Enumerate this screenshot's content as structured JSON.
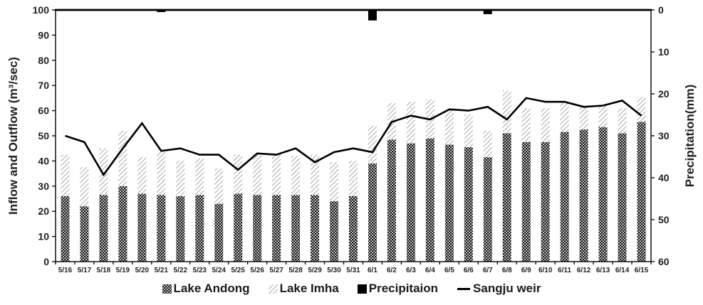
{
  "chart_data": {
    "type": "combo",
    "categories": [
      "5/16",
      "5/17",
      "5/18",
      "5/19",
      "5/20",
      "5/21",
      "5/22",
      "5/23",
      "5/24",
      "5/25",
      "5/26",
      "5/27",
      "5/28",
      "5/29",
      "5/30",
      "5/31",
      "6/1",
      "6/2",
      "6/3",
      "6/4",
      "6/5",
      "6/6",
      "6/7",
      "6/8",
      "6/9",
      "6/10",
      "6/11",
      "6/12",
      "6/13",
      "6/14",
      "6/15"
    ],
    "series": [
      {
        "name": "Lake Andong",
        "type": "bar",
        "stack": "flow",
        "axis": "left",
        "pattern": "dots",
        "values": [
          26,
          22,
          26.5,
          30,
          27,
          26.5,
          26,
          26.5,
          23,
          27,
          26.5,
          26.5,
          26.5,
          26.5,
          24,
          26,
          39,
          48.5,
          47,
          49,
          46.5,
          45.5,
          41.5,
          51,
          47.5,
          47.5,
          51.5,
          52.5,
          53.5,
          51,
          55.5
        ]
      },
      {
        "name": "Lake Imha",
        "type": "bar",
        "stack": "flow",
        "axis": "left",
        "pattern": "diagonal-hatch",
        "values": [
          16.5,
          15.5,
          18.5,
          22,
          14.5,
          17,
          14,
          14.5,
          14,
          15.5,
          16,
          16.5,
          15.5,
          16,
          15.5,
          14,
          15,
          14.5,
          16.5,
          15.5,
          13.5,
          13,
          10.5,
          17,
          13.5,
          13.5,
          11.5,
          9.5,
          8.5,
          10,
          10
        ]
      },
      {
        "name": "Precipitaion",
        "type": "bar-from-top",
        "axis": "right",
        "pattern": "solid",
        "values": [
          0,
          0,
          0,
          0,
          0,
          0.5,
          0,
          0,
          0,
          0,
          0,
          0,
          0,
          0,
          0,
          0,
          2.5,
          0,
          0,
          0,
          0,
          0,
          1,
          0,
          0,
          0,
          0,
          0,
          0,
          0,
          0
        ]
      },
      {
        "name": "Sangju weir",
        "type": "line",
        "axis": "left",
        "values": [
          50,
          47.5,
          34.5,
          45,
          55,
          44,
          45,
          42.5,
          42.5,
          36.5,
          43,
          42.5,
          45,
          39.5,
          43.5,
          45,
          43.5,
          55.5,
          58,
          56.5,
          60.5,
          60,
          61.5,
          56.5,
          65,
          63.5,
          63.5,
          61.5,
          62,
          64,
          58
        ]
      }
    ],
    "left_axis": {
      "label": "Inflow and Outflow (m³/sec)",
      "min": 0,
      "max": 100,
      "tick_interval": 10,
      "tick_labels": [
        "0",
        "10",
        "20",
        "30",
        "40",
        "50",
        "60",
        "70",
        "80",
        "90",
        "100"
      ]
    },
    "right_axis": {
      "label": "Precipitation(mm)",
      "min": 0,
      "max": 60,
      "tick_interval": 10,
      "inverted": true,
      "tick_labels": [
        "0",
        "10",
        "20",
        "30",
        "40",
        "50",
        "60"
      ]
    },
    "legend": {
      "position": "bottom",
      "items": [
        "Lake Andong",
        "Lake Imha",
        "Precipitaion",
        "Sangju weir"
      ]
    },
    "grid": false,
    "colors": {
      "dots_fill": "#111111",
      "hatch_stroke": "#8c8c8c",
      "precipitation": "#000000",
      "line": "#000000",
      "axis": "#000000",
      "text": "#1f1f1f",
      "background": "#ffffff"
    }
  }
}
